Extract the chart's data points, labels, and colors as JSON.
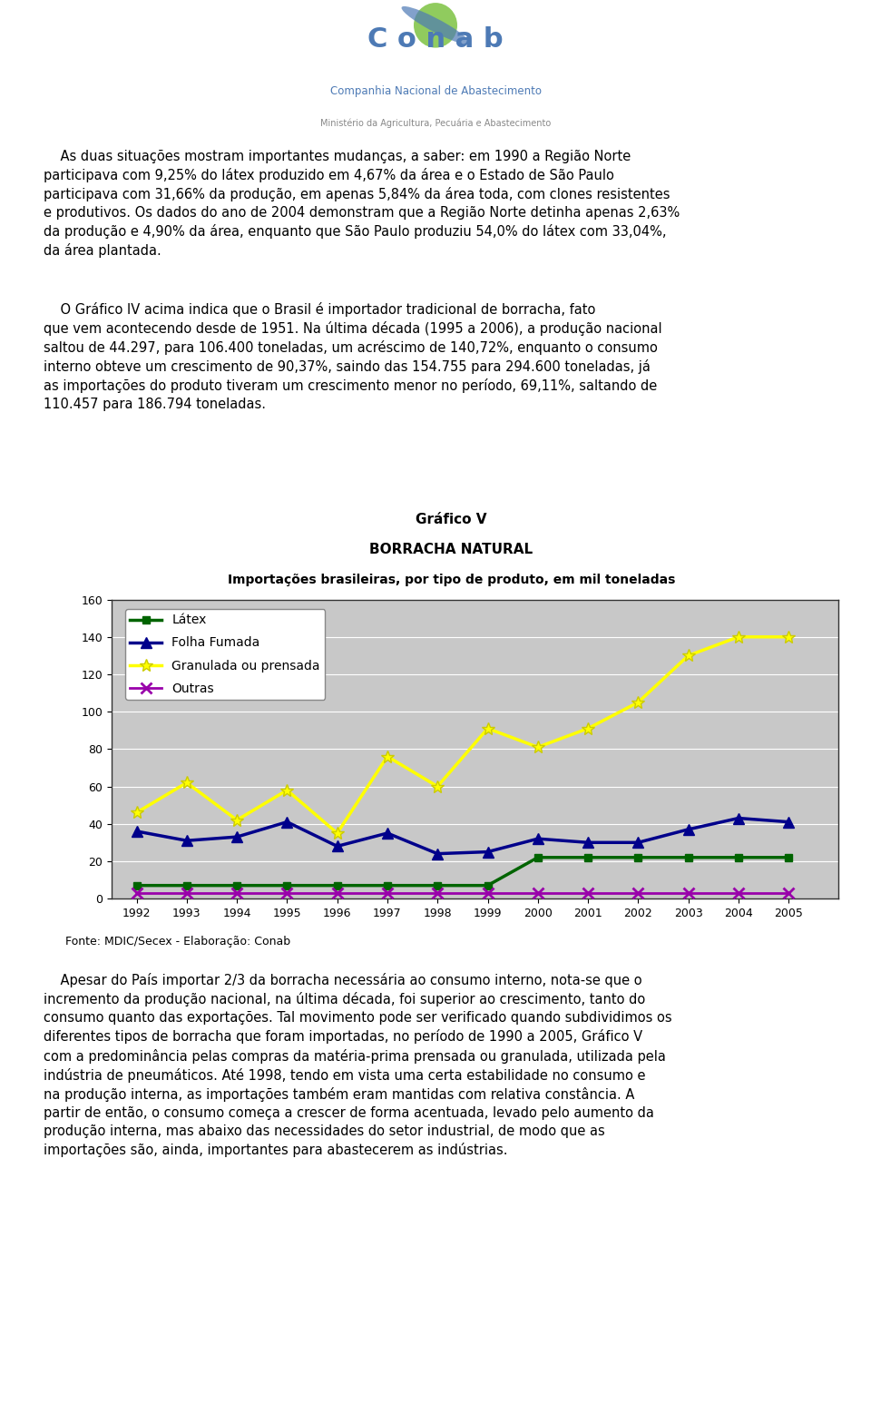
{
  "title_line1": "Gráfico V",
  "title_line2": "BORRACHA NATURAL",
  "title_line3": "Importações brasileiras, por tipo de produto, em mil toneladas",
  "years": [
    1992,
    1993,
    1994,
    1995,
    1996,
    1997,
    1998,
    1999,
    2000,
    2001,
    2002,
    2003,
    2004,
    2005
  ],
  "latex": [
    7,
    7,
    7,
    7,
    7,
    7,
    7,
    7,
    22,
    22,
    22,
    22,
    22,
    22
  ],
  "folha_fumada": [
    36,
    31,
    33,
    41,
    28,
    35,
    24,
    25,
    32,
    30,
    30,
    37,
    43,
    41
  ],
  "granulada": [
    46,
    62,
    42,
    58,
    35,
    76,
    60,
    91,
    81,
    91,
    105,
    130,
    140,
    140
  ],
  "outras": [
    3,
    3,
    3,
    3,
    3,
    3,
    3,
    3,
    3,
    3,
    3,
    3,
    3,
    3
  ],
  "latex_color": "#006400",
  "folha_fumada_color": "#00008B",
  "granulada_color": "#FFFF00",
  "outras_color": "#9900AA",
  "plot_bg_color": "#C8C8C8",
  "ylim": [
    0,
    160
  ],
  "yticks": [
    0,
    20,
    40,
    60,
    80,
    100,
    120,
    140,
    160
  ],
  "source": "Fonte: MDIC/Secex - Elaboração: Conab",
  "chart_border_color": "#000000",
  "grid_color": "#AAAAAA",
  "fig_width": 9.6,
  "fig_height": 15.47,
  "dpi": 100,
  "top_text_1": "    As duas situações mostram importantes mudanças, a saber: em 1990 a Região Norte participava com 9,25% do látex produzido em 4,67% da área e o Estado de São Paulo participava com 31,66% da produção, em apenas 5,84% da área toda, com clones resistentes e produtivos. Os dados do ano de 2004 demonstram que a Região Norte detinha apenas 2,63% da produção e 4,90% da área, enquanto que São Paulo produziu 54,0% do látex com 33,04%, da área plantada.",
  "top_text_2": "    O Gráfico IV acima indica que o Brasil é importador tradicional de borracha, fato que vem acontecendo desde de 1951. Na última década (1995 a 2006), a produção nacional saltou de 44.297, para 106.400 toneladas, um acréscimo de 140,72%, enquanto o consumo interno obteve um crescimento de 90,37%, saindo das 154.755 para 294.600 toneladas, já as importações do produto tiveram um crescimento menor no período, 69,11%, saltando de 110.457 para 186.794 toneladas.",
  "bottom_text": "    Apesar do País importar 2/3 da borracha necessária ao consumo interno, nota-se que o incremento da produção nacional, na última década, foi superior ao crescimento, tanto do consumo quanto das exportações. Tal movimento pode ser verificado quando subdividimos os diferentes tipos de borracha que foram importadas, no período de 1990 a 2005, Gráfico V com a predominância pelas compras da matéria-prima prensada ou granulada, utilizada pela indústria de pneumáticos. Até 1998, tendo em vista uma certa estabilidade no consumo e na produção interna, as importações também eram mantidas com relativa constância. A partir de então, o consumo começa a crescer de forma acentuada, levado pelo aumento da produção interna, mas abaixo das necessidades do setor industrial, de modo que as importações são, ainda, importantes para abastecerem as indústrias."
}
